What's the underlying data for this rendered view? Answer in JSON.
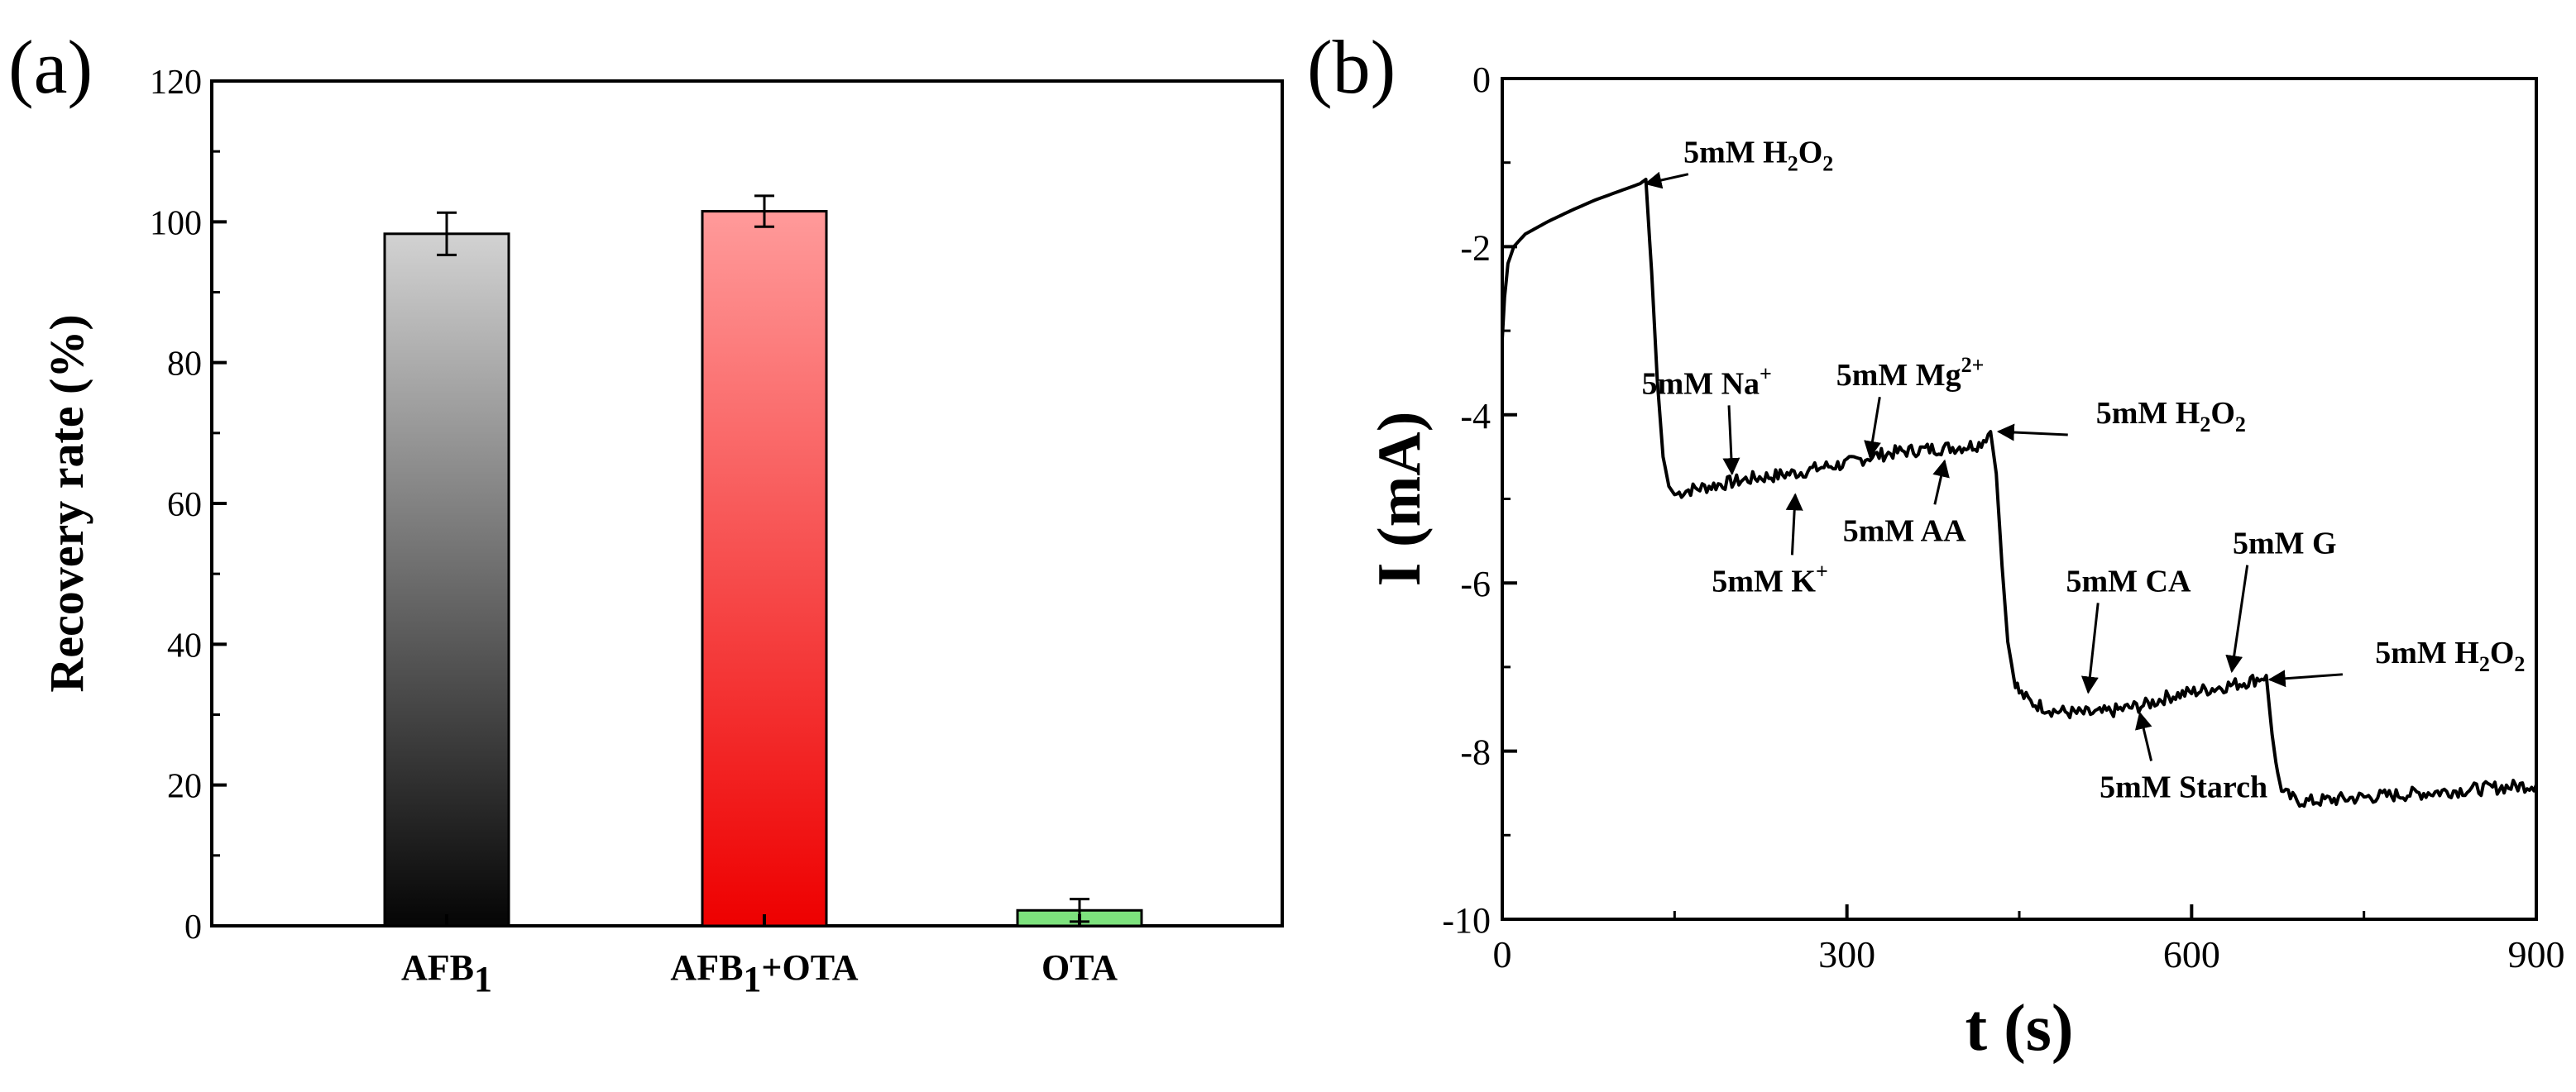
{
  "colors": {
    "axis": "#000000",
    "afb1_top": "#d2d2d2",
    "afb1_bottom": "#050505",
    "afb1ota_top": "#ff9a9a",
    "afb1ota_bottom": "#ee0000",
    "ota_fill": "#7de27d",
    "trace": "#000000"
  },
  "chart_data": [
    {
      "panel_label": "(a)",
      "type": "bar",
      "ylabel": "Recovery rate (%)",
      "ylim": [
        0,
        120
      ],
      "yticks": [
        0,
        20,
        40,
        60,
        80,
        100,
        120
      ],
      "categories": [
        {
          "base": "AFB",
          "sub": "1",
          "tail": ""
        },
        {
          "base": "AFB",
          "sub": "1",
          "tail": "+OTA"
        },
        {
          "base": "OTA",
          "sub": "",
          "tail": ""
        }
      ],
      "values": [
        98.3,
        101.5,
        2.2
      ],
      "errors": [
        3.0,
        2.2,
        1.6
      ],
      "grid": false,
      "legend": "none"
    },
    {
      "panel_label": "(b)",
      "type": "line",
      "xlabel": "t (s)",
      "ylabel": "I (mA)",
      "xlim": [
        0,
        900
      ],
      "ylim": [
        -10,
        0
      ],
      "xticks": [
        0,
        300,
        600,
        900
      ],
      "yticks": [
        0,
        -2,
        -4,
        -6,
        -8,
        -10
      ],
      "grid": false,
      "legend": "none",
      "annotations": [
        {
          "base": "5mM H",
          "sub": "2",
          "mid": "O",
          "sub2": "2",
          "sup": "",
          "text_x": 223,
          "text_y": -1.0,
          "arrow_x": 125,
          "arrow_y": -1.25
        },
        {
          "base": "5mM Na",
          "sub": "",
          "mid": "",
          "sub2": "",
          "sup": "+",
          "text_x": 178,
          "text_y": -3.75,
          "arrow_x": 200,
          "arrow_y": -4.7
        },
        {
          "base": "5mM Mg",
          "sub": "",
          "mid": "",
          "sub2": "",
          "sup": "2+",
          "text_x": 355,
          "text_y": -3.65,
          "arrow_x": 320,
          "arrow_y": -4.5
        },
        {
          "base": "5mM H",
          "sub": "2",
          "mid": "O",
          "sub2": "2",
          "sup": "",
          "text_x": 582,
          "text_y": -4.1,
          "arrow_x": 432,
          "arrow_y": -4.2
        },
        {
          "base": "5mM AA",
          "sub": "",
          "mid": "",
          "sub2": "",
          "sup": "",
          "text_x": 350,
          "text_y": -5.5,
          "arrow_x": 385,
          "arrow_y": -4.55
        },
        {
          "base": "5mM K",
          "sub": "",
          "mid": "",
          "sub2": "",
          "sup": "+",
          "text_x": 233,
          "text_y": -6.1,
          "arrow_x": 255,
          "arrow_y": -4.95
        },
        {
          "base": "5mM CA",
          "sub": "",
          "mid": "",
          "sub2": "",
          "sup": "",
          "text_x": 545,
          "text_y": -6.1,
          "arrow_x": 510,
          "arrow_y": -7.3
        },
        {
          "base": "5mM G",
          "sub": "",
          "mid": "",
          "sub2": "",
          "sup": "",
          "text_x": 681,
          "text_y": -5.65,
          "arrow_x": 635,
          "arrow_y": -7.05
        },
        {
          "base": "5mM H",
          "sub": "2",
          "mid": "O",
          "sub2": "2",
          "sup": "",
          "text_x": 825,
          "text_y": -6.95,
          "arrow_x": 668,
          "arrow_y": -7.15
        },
        {
          "base": "5mM Starch",
          "sub": "",
          "mid": "",
          "sub2": "",
          "sup": "",
          "text_x": 593,
          "text_y": -8.55,
          "arrow_x": 555,
          "arrow_y": -7.55
        }
      ],
      "series": [
        {
          "x": [
            0,
            2,
            5,
            10,
            20,
            40,
            60,
            80,
            100,
            120,
            125,
            130,
            135,
            140,
            145,
            150,
            160,
            180,
            200,
            220,
            240,
            260,
            280,
            300,
            320,
            340,
            360,
            380,
            400,
            415,
            425,
            430,
            435,
            440,
            445,
            450,
            460,
            480,
            500,
            520,
            540,
            560,
            580,
            600,
            620,
            640,
            655,
            665,
            670,
            675,
            680,
            690,
            700,
            720,
            750,
            800,
            850,
            900
          ],
          "y": [
            -3.1,
            -2.6,
            -2.2,
            -2.0,
            -1.85,
            -1.7,
            -1.57,
            -1.45,
            -1.35,
            -1.25,
            -1.2,
            -2.3,
            -3.6,
            -4.5,
            -4.85,
            -4.95,
            -4.9,
            -4.85,
            -4.8,
            -4.75,
            -4.72,
            -4.68,
            -4.62,
            -4.58,
            -4.5,
            -4.45,
            -4.42,
            -4.4,
            -4.38,
            -4.35,
            -4.2,
            -4.7,
            -5.8,
            -6.7,
            -7.1,
            -7.3,
            -7.42,
            -7.52,
            -7.55,
            -7.55,
            -7.5,
            -7.45,
            -7.35,
            -7.3,
            -7.25,
            -7.2,
            -7.15,
            -7.1,
            -7.8,
            -8.3,
            -8.5,
            -8.58,
            -8.6,
            -8.58,
            -8.55,
            -8.5,
            -8.45,
            -8.4
          ]
        }
      ]
    }
  ]
}
